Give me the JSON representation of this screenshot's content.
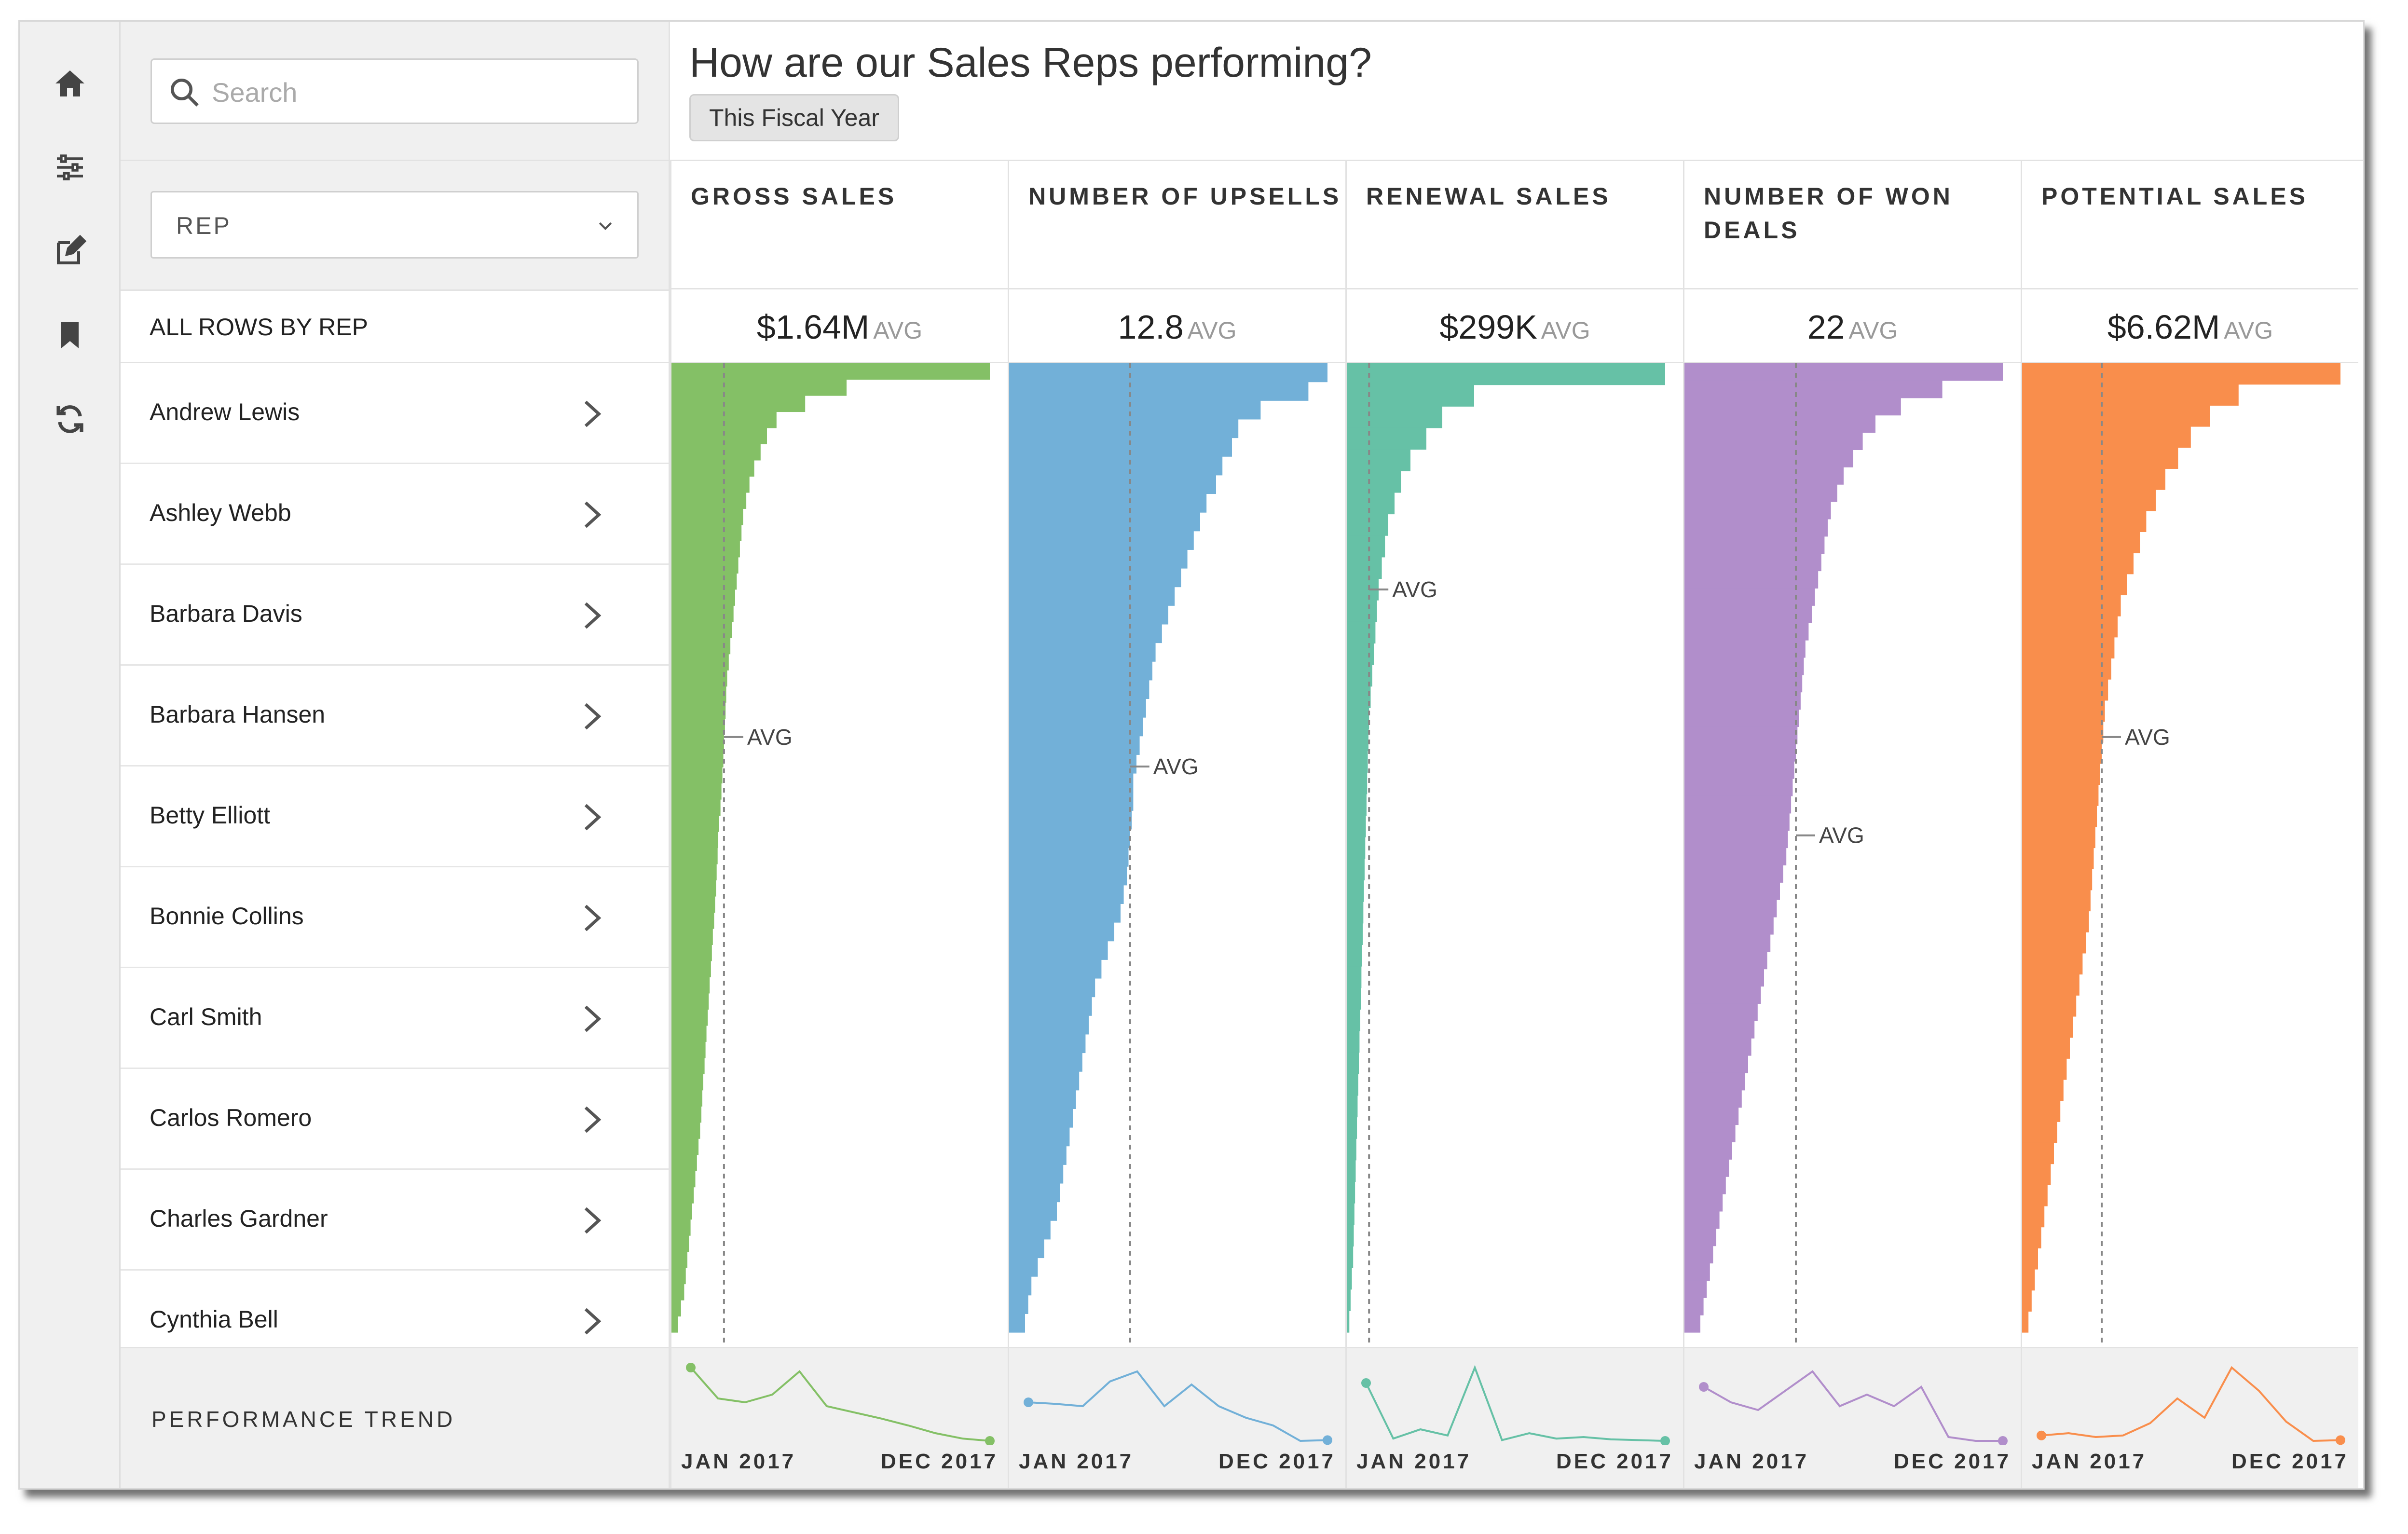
{
  "app": {
    "page_title": "How are our Sales Reps performing?",
    "filter_chip": "This Fiscal Year"
  },
  "left_rail": {
    "icons": [
      "home-icon",
      "sliders-icon",
      "edit-icon",
      "bookmark-icon",
      "refresh-icon"
    ]
  },
  "sidepanel": {
    "search_placeholder": "Search",
    "group_by_label": "REP",
    "all_rows_label": "ALL ROWS BY REP",
    "trend_label": "PERFORMANCE TREND",
    "reps": [
      "Andrew Lewis",
      "Ashley Webb",
      "Barbara Davis",
      "Barbara Hansen",
      "Betty Elliott",
      "Bonnie Collins",
      "Carl Smith",
      "Carlos Romero",
      "Charles Gardner",
      "Cynthia Bell"
    ]
  },
  "avg_unit": "AVG",
  "avg_marker_label": "AVG",
  "trend_axis": {
    "start": "JAN 2017",
    "end": "DEC 2017"
  },
  "colors": {
    "gross_sales": "#84c066",
    "upsells": "#72b0d8",
    "renewal": "#66c1a6",
    "won_deals": "#b18ecb",
    "potential": "#f98e4c"
  },
  "columns": [
    {
      "key": "gross_sales",
      "title_line1": "GROSS SALES",
      "title_line2": "",
      "avg_value": "$1.64M"
    },
    {
      "key": "upsells",
      "title_line1": "NUMBER OF UPSELLS",
      "title_line2": "",
      "avg_value": "12.8"
    },
    {
      "key": "renewal",
      "title_line1": "RENEWAL SALES",
      "title_line2": "",
      "avg_value": "$299K"
    },
    {
      "key": "won_deals",
      "title_line1": "NUMBER OF WON",
      "title_line2": "DEALS",
      "avg_value": "22"
    },
    {
      "key": "potential",
      "title_line1": "POTENTIAL SALES",
      "title_line2": "",
      "avg_value": "$6.62M"
    }
  ],
  "chart_data": [
    {
      "type": "bar",
      "name": "GROSS SALES",
      "orientation": "horizontal",
      "avg_fraction": 0.165,
      "avg_marker_row_fraction": 0.38,
      "values": [
        1.0,
        0.55,
        0.42,
        0.33,
        0.3,
        0.28,
        0.26,
        0.245,
        0.235,
        0.225,
        0.22,
        0.215,
        0.21,
        0.205,
        0.2,
        0.195,
        0.19,
        0.185,
        0.18,
        0.175,
        0.172,
        0.17,
        0.168,
        0.165,
        0.163,
        0.16,
        0.157,
        0.154,
        0.15,
        0.147,
        0.145,
        0.142,
        0.14,
        0.137,
        0.134,
        0.13,
        0.127,
        0.124,
        0.12,
        0.117,
        0.114,
        0.11,
        0.107,
        0.104,
        0.1,
        0.097,
        0.094,
        0.09,
        0.085,
        0.08,
        0.075,
        0.07,
        0.065,
        0.06,
        0.055,
        0.05,
        0.045,
        0.04,
        0.03,
        0.02
      ]
    },
    {
      "type": "bar",
      "name": "NUMBER OF UPSELLS",
      "orientation": "horizontal",
      "avg_fraction": 0.38,
      "avg_marker_row_fraction": 0.41,
      "values": [
        1.0,
        0.94,
        0.79,
        0.72,
        0.7,
        0.67,
        0.65,
        0.62,
        0.6,
        0.58,
        0.56,
        0.54,
        0.52,
        0.5,
        0.48,
        0.46,
        0.45,
        0.44,
        0.43,
        0.42,
        0.41,
        0.4,
        0.39,
        0.39,
        0.385,
        0.38,
        0.375,
        0.37,
        0.36,
        0.35,
        0.33,
        0.31,
        0.29,
        0.27,
        0.26,
        0.25,
        0.24,
        0.23,
        0.22,
        0.21,
        0.2,
        0.19,
        0.18,
        0.17,
        0.16,
        0.15,
        0.13,
        0.11,
        0.09,
        0.07,
        0.06,
        0.05
      ]
    },
    {
      "type": "bar",
      "name": "RENEWAL SALES",
      "orientation": "horizontal",
      "avg_fraction": 0.07,
      "avg_marker_row_fraction": 0.23,
      "values": [
        1.0,
        0.4,
        0.3,
        0.25,
        0.2,
        0.17,
        0.15,
        0.13,
        0.12,
        0.11,
        0.1,
        0.095,
        0.09,
        0.085,
        0.08,
        0.075,
        0.07,
        0.068,
        0.066,
        0.064,
        0.062,
        0.06,
        0.058,
        0.056,
        0.054,
        0.052,
        0.05,
        0.048,
        0.046,
        0.044,
        0.042,
        0.04,
        0.038,
        0.036,
        0.034,
        0.032,
        0.03,
        0.028,
        0.026,
        0.024,
        0.022,
        0.02,
        0.016,
        0.012,
        0.008
      ]
    },
    {
      "type": "bar",
      "name": "NUMBER OF WON DEALS",
      "orientation": "horizontal",
      "avg_fraction": 0.35,
      "avg_marker_row_fraction": 0.48,
      "values": [
        1.0,
        0.81,
        0.68,
        0.6,
        0.56,
        0.53,
        0.5,
        0.48,
        0.46,
        0.45,
        0.44,
        0.43,
        0.42,
        0.41,
        0.4,
        0.39,
        0.38,
        0.375,
        0.37,
        0.365,
        0.36,
        0.355,
        0.35,
        0.345,
        0.34,
        0.335,
        0.33,
        0.325,
        0.32,
        0.31,
        0.3,
        0.29,
        0.28,
        0.27,
        0.26,
        0.25,
        0.24,
        0.23,
        0.22,
        0.21,
        0.2,
        0.19,
        0.18,
        0.17,
        0.16,
        0.15,
        0.14,
        0.13,
        0.12,
        0.11,
        0.1,
        0.09,
        0.08,
        0.07,
        0.06,
        0.05
      ]
    },
    {
      "type": "bar",
      "name": "POTENTIAL SALES",
      "orientation": "horizontal",
      "avg_fraction": 0.25,
      "avg_marker_row_fraction": 0.38,
      "values": [
        1.0,
        0.68,
        0.59,
        0.53,
        0.49,
        0.45,
        0.42,
        0.39,
        0.37,
        0.35,
        0.33,
        0.31,
        0.3,
        0.29,
        0.28,
        0.27,
        0.26,
        0.255,
        0.25,
        0.245,
        0.24,
        0.235,
        0.23,
        0.225,
        0.22,
        0.215,
        0.21,
        0.2,
        0.19,
        0.18,
        0.17,
        0.16,
        0.15,
        0.14,
        0.13,
        0.12,
        0.11,
        0.1,
        0.09,
        0.08,
        0.07,
        0.06,
        0.05,
        0.04,
        0.03,
        0.02
      ]
    }
  ],
  "trend_data": [
    {
      "name": "GROSS SALES",
      "points": [
        1.0,
        0.6,
        0.55,
        0.65,
        0.95,
        0.5,
        0.42,
        0.34,
        0.25,
        0.15,
        0.08,
        0.05
      ]
    },
    {
      "name": "NUMBER OF UPSELLS",
      "points": [
        0.55,
        0.53,
        0.5,
        0.82,
        0.95,
        0.5,
        0.78,
        0.5,
        0.35,
        0.25,
        0.05,
        0.06
      ]
    },
    {
      "name": "RENEWAL SALES",
      "points": [
        0.8,
        0.08,
        0.2,
        0.12,
        1.0,
        0.06,
        0.15,
        0.08,
        0.1,
        0.07,
        0.06,
        0.05
      ]
    },
    {
      "name": "NUMBER OF WON DEALS",
      "points": [
        0.75,
        0.55,
        0.45,
        0.7,
        0.95,
        0.5,
        0.65,
        0.5,
        0.75,
        0.1,
        0.05,
        0.05
      ]
    },
    {
      "name": "POTENTIAL SALES",
      "points": [
        0.12,
        0.15,
        0.1,
        0.12,
        0.28,
        0.6,
        0.35,
        1.0,
        0.7,
        0.3,
        0.05,
        0.06
      ]
    }
  ]
}
